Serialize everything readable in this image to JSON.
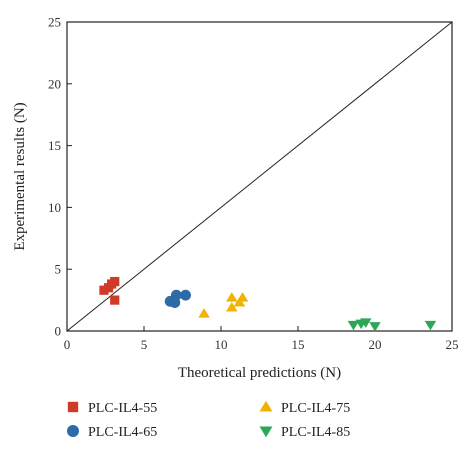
{
  "chart_data": {
    "type": "scatter",
    "xlabel": "Theoretical predictions (N)",
    "ylabel": "Experimental results (N)",
    "xlim": [
      0,
      25
    ],
    "ylim": [
      0,
      25
    ],
    "x_ticks": [
      0,
      5,
      10,
      15,
      20,
      25
    ],
    "y_ticks": [
      0,
      5,
      10,
      15,
      20,
      25
    ],
    "grid": false,
    "reference_line": {
      "from": [
        0,
        0
      ],
      "to": [
        25,
        25
      ]
    },
    "legend_position": "bottom",
    "series": [
      {
        "name": "PLC-IL4-55",
        "marker": "square",
        "color": "#d03b27",
        "points": [
          [
            2.4,
            3.3
          ],
          [
            2.7,
            3.5
          ],
          [
            2.9,
            3.8
          ],
          [
            3.1,
            4.0
          ],
          [
            3.1,
            2.5
          ]
        ]
      },
      {
        "name": "PLC-IL4-65",
        "marker": "circle",
        "color": "#2d6aa8",
        "points": [
          [
            6.7,
            2.4
          ],
          [
            7.0,
            2.3
          ],
          [
            7.1,
            2.9
          ],
          [
            7.7,
            2.9
          ]
        ]
      },
      {
        "name": "PLC-IL4-75",
        "marker": "triangle-up",
        "color": "#f0b400",
        "points": [
          [
            8.9,
            1.4
          ],
          [
            10.7,
            2.7
          ],
          [
            10.7,
            1.9
          ],
          [
            11.2,
            2.3
          ],
          [
            11.4,
            2.7
          ]
        ]
      },
      {
        "name": "PLC-IL4-85",
        "marker": "triangle-down",
        "color": "#2ea657",
        "points": [
          [
            18.6,
            0.5
          ],
          [
            19.1,
            0.6
          ],
          [
            19.4,
            0.7
          ],
          [
            20.0,
            0.4
          ],
          [
            23.6,
            0.5
          ]
        ]
      }
    ]
  }
}
